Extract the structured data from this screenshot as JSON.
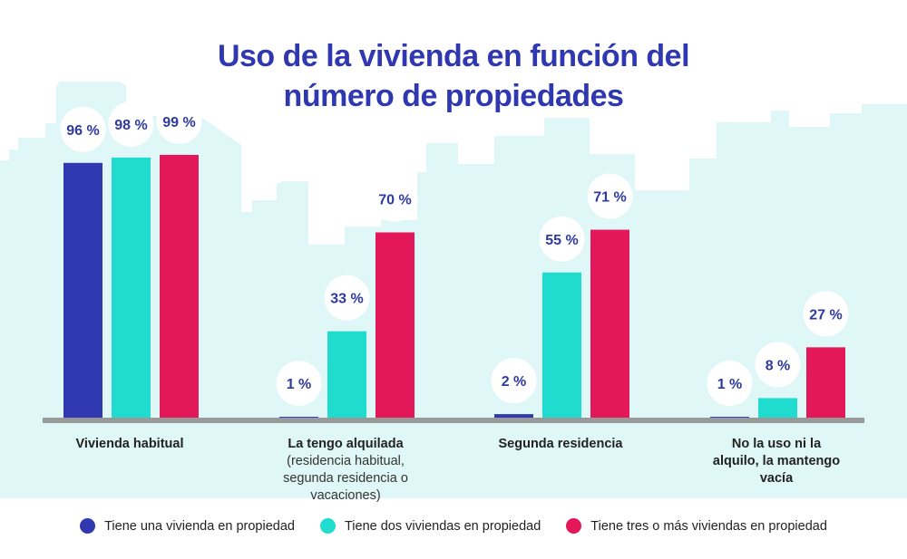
{
  "chart_data": {
    "type": "bar",
    "title": "Uso de la vivienda en función del número de propiedades",
    "categories": [
      {
        "label": "Vivienda habitual",
        "sub": ""
      },
      {
        "label": "La tengo alquilada",
        "sub": "(residencia habitual, segunda residencia o vacaciones)"
      },
      {
        "label": "Segunda residencia",
        "sub": ""
      },
      {
        "label": "No la uso ni la alquilo, la mantengo vacía",
        "sub": ""
      }
    ],
    "series": [
      {
        "name": "Tiene una vivienda en propiedad",
        "color": "#3139b0",
        "values": [
          96,
          1,
          2,
          1
        ]
      },
      {
        "name": "Tiene dos viviendas en propiedad",
        "color": "#1fdccf",
        "values": [
          98,
          33,
          55,
          8
        ]
      },
      {
        "name": "Tiene tres o más viviendas en propiedad",
        "color": "#e3185a",
        "values": [
          99,
          70,
          71,
          27
        ]
      }
    ],
    "value_suffix": " %",
    "ylim": [
      0,
      100
    ],
    "grid": false,
    "legend": "bottom",
    "colors": {
      "title": "#2f38b0",
      "label": "#2f3a9e",
      "background": "#dff7f6",
      "baseline": "#999999"
    }
  }
}
